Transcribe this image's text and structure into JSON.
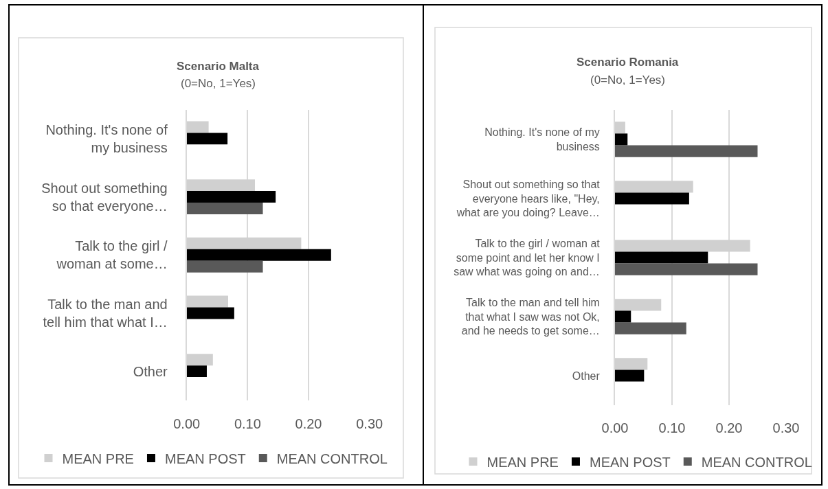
{
  "chart_data": [
    {
      "type": "bar",
      "orientation": "horizontal",
      "title": "Scenario Malta",
      "subtitle": "(0=No, 1=Yes)",
      "categories": [
        "Nothing. It's none of my business",
        "Shout out something so that everyone…",
        "Talk to the girl / woman at some…",
        "Talk to the man and tell him that what I…",
        "Other"
      ],
      "series": [
        {
          "name": "MEAN PRE",
          "color": "#d0d0d0",
          "values": [
            0.036,
            0.112,
            0.188,
            0.068,
            0.043
          ]
        },
        {
          "name": "MEAN POST",
          "color": "#000000",
          "values": [
            0.067,
            0.146,
            0.237,
            0.078,
            0.033
          ]
        },
        {
          "name": "MEAN CONTROL",
          "color": "#595959",
          "values": [
            null,
            0.125,
            0.125,
            null,
            null
          ]
        }
      ],
      "xlim": [
        0,
        0.3
      ],
      "xticks": [
        {
          "value": 0,
          "label": "0.00"
        },
        {
          "value": 0.1,
          "label": "0.10"
        },
        {
          "value": 0.2,
          "label": "0.20"
        },
        {
          "value": 0.3,
          "label": "0.30"
        }
      ],
      "grid": "x",
      "legend": "bottom"
    },
    {
      "type": "bar",
      "orientation": "horizontal",
      "title": "Scenario Romania",
      "subtitle": "(0=No, 1=Yes)",
      "categories": [
        "Nothing. It's none of my business",
        "Shout out something so that everyone hears like, \"Hey, what are you doing? Leave…",
        "Talk to the girl / woman at some point and let her know I saw what was going on and…",
        "Talk to the man and tell him that what I saw was not Ok, and he needs to get some…",
        "Other"
      ],
      "series": [
        {
          "name": "MEAN PRE",
          "color": "#d0d0d0",
          "values": [
            0.018,
            0.137,
            0.237,
            0.081,
            0.057
          ]
        },
        {
          "name": "MEAN POST",
          "color": "#000000",
          "values": [
            0.022,
            0.13,
            0.163,
            0.028,
            0.051
          ]
        },
        {
          "name": "MEAN CONTROL",
          "color": "#595959",
          "values": [
            0.25,
            null,
            0.25,
            0.125,
            null
          ]
        }
      ],
      "xlim": [
        0,
        0.3
      ],
      "xticks": [
        {
          "value": 0,
          "label": "0.00"
        },
        {
          "value": 0.1,
          "label": "0.10"
        },
        {
          "value": 0.2,
          "label": "0.20"
        },
        {
          "value": 0.3,
          "label": "0.30"
        }
      ],
      "grid": "x",
      "legend": "bottom"
    }
  ]
}
